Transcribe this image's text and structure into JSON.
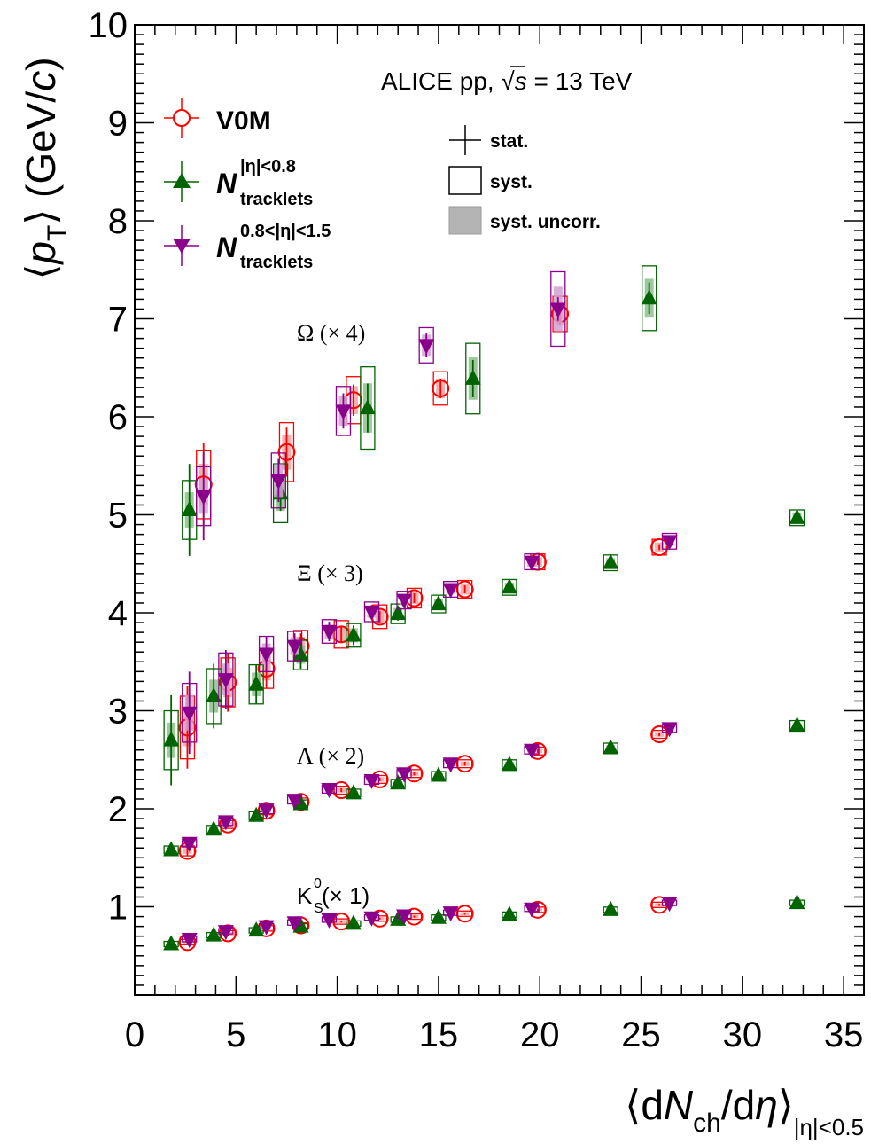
{
  "chart_data": {
    "type": "scatter",
    "title": "ALICE pp, √s = 13 TeV",
    "title_parts": {
      "pre": "ALICE pp, ",
      "sqrt": "√",
      "s": "s",
      "post": " = 13 TeV"
    },
    "xlabel": "⟨dNch/dη⟩|η|<0.5",
    "xlabel_parts": {
      "open": "⟨d",
      "N": "N",
      "ch": "ch",
      "slash": "/d",
      "eta": "η",
      "close": "⟩",
      "sub": "|η|<0.5"
    },
    "ylabel": "⟨pT⟩ (GeV/c)",
    "ylabel_parts": {
      "open": "⟨",
      "p": "p",
      "T": "T",
      "close": "⟩",
      "unit_open": " (GeV/",
      "c": "c",
      "unit_close": ")"
    },
    "xlim": [
      0,
      36
    ],
    "ylim": [
      0.1,
      10
    ],
    "xticks": [
      0,
      5,
      10,
      15,
      20,
      25,
      30,
      35
    ],
    "xtick_labels": [
      "0",
      "5",
      "10",
      "15",
      "20",
      "25",
      "30",
      "35"
    ],
    "yticks": [
      1,
      2,
      3,
      4,
      5,
      6,
      7,
      8,
      9,
      10
    ],
    "ytick_labels": [
      "1",
      "2",
      "3",
      "4",
      "5",
      "6",
      "7",
      "8",
      "9",
      "10"
    ],
    "grid": false,
    "legend_position": "top-left",
    "legend": [
      {
        "series": "V0M",
        "label": "V0M",
        "marker": "open-circle",
        "color": "#ff0000"
      },
      {
        "series": "Ntracklets_eta08",
        "label_main": "N",
        "sup": "|η|<0.8",
        "sub": "tracklets",
        "marker": "triangle-up",
        "color": "#006400"
      },
      {
        "series": "Ntracklets_eta0815",
        "label_main": "N",
        "sup": "0.8<|η|<1.5",
        "sub": "tracklets",
        "marker": "triangle-down",
        "color": "#8b008b"
      }
    ],
    "uncertainty_legend": [
      {
        "label": "stat.",
        "style": "cross"
      },
      {
        "label": "syst.",
        "style": "open-box"
      },
      {
        "label": "syst. uncorr.",
        "style": "filled-box"
      }
    ],
    "annotations": [
      {
        "text": "Ω (× 4)",
        "x": 3.8,
        "y": 7.2
      },
      {
        "text": "Ξ (× 3)",
        "x": 3.8,
        "y": 4.7
      },
      {
        "text": "Λ (× 2)",
        "x": 3.8,
        "y": 2.7
      },
      {
        "label": "K",
        "sup": "0",
        "sub": "S",
        "suffix": " (× 1)",
        "x": 3.8,
        "y": 1.2
      }
    ],
    "series": [
      {
        "name": "V0M",
        "color": "#ff0000",
        "marker": "open-circle",
        "groups": {
          "Omega": [
            {
              "x": 3.4,
              "y": 5.31,
              "stat": 0.42,
              "syst": 0.35
            },
            {
              "x": 7.5,
              "y": 5.64,
              "stat": 0.25,
              "syst": 0.3
            },
            {
              "x": 10.8,
              "y": 6.17,
              "stat": 0.16,
              "syst": 0.24
            },
            {
              "x": 15.1,
              "y": 6.29,
              "stat": 0.1,
              "syst": 0.17
            },
            {
              "x": 21.0,
              "y": 7.05,
              "stat": 0.12,
              "syst": 0.18
            }
          ],
          "Xi": [
            {
              "x": 2.6,
              "y": 2.83,
              "stat": 0.42,
              "syst": 0.32
            },
            {
              "x": 4.6,
              "y": 3.29,
              "stat": 0.3,
              "syst": 0.25
            },
            {
              "x": 6.5,
              "y": 3.43,
              "stat": 0.2,
              "syst": 0.2
            },
            {
              "x": 8.2,
              "y": 3.66,
              "stat": 0.13,
              "syst": 0.16
            },
            {
              "x": 10.2,
              "y": 3.78,
              "stat": 0.08,
              "syst": 0.14
            },
            {
              "x": 12.1,
              "y": 3.96,
              "stat": 0.06,
              "syst": 0.12
            },
            {
              "x": 13.8,
              "y": 4.15,
              "stat": 0.05,
              "syst": 0.1
            },
            {
              "x": 16.3,
              "y": 4.24,
              "stat": 0.04,
              "syst": 0.09
            },
            {
              "x": 19.9,
              "y": 4.52,
              "stat": 0.03,
              "syst": 0.08
            },
            {
              "x": 25.9,
              "y": 4.67,
              "stat": 0.03,
              "syst": 0.08
            }
          ],
          "Lambda": [
            {
              "x": 2.6,
              "y": 1.57,
              "stat": 0.05,
              "syst": 0.05
            },
            {
              "x": 4.6,
              "y": 1.84,
              "stat": 0.03,
              "syst": 0.04
            },
            {
              "x": 6.5,
              "y": 1.98,
              "stat": 0.02,
              "syst": 0.04
            },
            {
              "x": 8.2,
              "y": 2.07,
              "stat": 0.02,
              "syst": 0.04
            },
            {
              "x": 10.2,
              "y": 2.19,
              "stat": 0.02,
              "syst": 0.04
            },
            {
              "x": 12.1,
              "y": 2.3,
              "stat": 0.02,
              "syst": 0.04
            },
            {
              "x": 13.8,
              "y": 2.36,
              "stat": 0.02,
              "syst": 0.04
            },
            {
              "x": 16.3,
              "y": 2.46,
              "stat": 0.02,
              "syst": 0.04
            },
            {
              "x": 19.9,
              "y": 2.59,
              "stat": 0.02,
              "syst": 0.04
            },
            {
              "x": 25.9,
              "y": 2.76,
              "stat": 0.02,
              "syst": 0.04
            }
          ],
          "K0S": [
            {
              "x": 2.6,
              "y": 0.64,
              "stat": 0.01,
              "syst": 0.02
            },
            {
              "x": 4.6,
              "y": 0.73,
              "stat": 0.01,
              "syst": 0.02
            },
            {
              "x": 6.5,
              "y": 0.78,
              "stat": 0.01,
              "syst": 0.02
            },
            {
              "x": 8.2,
              "y": 0.81,
              "stat": 0.01,
              "syst": 0.02
            },
            {
              "x": 10.2,
              "y": 0.85,
              "stat": 0.01,
              "syst": 0.02
            },
            {
              "x": 12.1,
              "y": 0.88,
              "stat": 0.01,
              "syst": 0.02
            },
            {
              "x": 13.8,
              "y": 0.9,
              "stat": 0.01,
              "syst": 0.02
            },
            {
              "x": 16.3,
              "y": 0.93,
              "stat": 0.01,
              "syst": 0.02
            },
            {
              "x": 19.9,
              "y": 0.97,
              "stat": 0.01,
              "syst": 0.02
            },
            {
              "x": 25.9,
              "y": 1.02,
              "stat": 0.01,
              "syst": 0.02
            }
          ]
        }
      },
      {
        "name": "Ntracklets_eta08",
        "color": "#006400",
        "marker": "triangle-up",
        "groups": {
          "Omega": [
            {
              "x": 2.7,
              "y": 5.05,
              "stat": 0.47,
              "syst": 0.3
            },
            {
              "x": 7.2,
              "y": 5.22,
              "stat": 0.18,
              "syst": 0.3
            },
            {
              "x": 11.5,
              "y": 6.09,
              "stat": 0.25,
              "syst": 0.42
            },
            {
              "x": 16.7,
              "y": 6.39,
              "stat": 0.19,
              "syst": 0.36
            },
            {
              "x": 25.4,
              "y": 7.21,
              "stat": 0.16,
              "syst": 0.33
            }
          ],
          "Xi": [
            {
              "x": 1.8,
              "y": 2.7,
              "stat": 0.46,
              "syst": 0.3
            },
            {
              "x": 3.9,
              "y": 3.15,
              "stat": 0.33,
              "syst": 0.28
            },
            {
              "x": 6.0,
              "y": 3.27,
              "stat": 0.2,
              "syst": 0.2
            },
            {
              "x": 8.2,
              "y": 3.57,
              "stat": 0.14,
              "syst": 0.15
            },
            {
              "x": 10.8,
              "y": 3.77,
              "stat": 0.1,
              "syst": 0.12
            },
            {
              "x": 13.0,
              "y": 3.99,
              "stat": 0.07,
              "syst": 0.1
            },
            {
              "x": 15.0,
              "y": 4.09,
              "stat": 0.06,
              "syst": 0.09
            },
            {
              "x": 18.5,
              "y": 4.26,
              "stat": 0.05,
              "syst": 0.08
            },
            {
              "x": 23.5,
              "y": 4.51,
              "stat": 0.04,
              "syst": 0.08
            },
            {
              "x": 32.7,
              "y": 4.97,
              "stat": 0.04,
              "syst": 0.08
            }
          ],
          "Lambda": [
            {
              "x": 1.8,
              "y": 1.58,
              "stat": 0.03,
              "syst": 0.04
            },
            {
              "x": 3.9,
              "y": 1.79,
              "stat": 0.02,
              "syst": 0.04
            },
            {
              "x": 6.0,
              "y": 1.93,
              "stat": 0.02,
              "syst": 0.04
            },
            {
              "x": 8.2,
              "y": 2.05,
              "stat": 0.02,
              "syst": 0.04
            },
            {
              "x": 10.8,
              "y": 2.16,
              "stat": 0.02,
              "syst": 0.04
            },
            {
              "x": 13.0,
              "y": 2.26,
              "stat": 0.02,
              "syst": 0.04
            },
            {
              "x": 15.0,
              "y": 2.34,
              "stat": 0.02,
              "syst": 0.04
            },
            {
              "x": 18.5,
              "y": 2.45,
              "stat": 0.02,
              "syst": 0.05
            },
            {
              "x": 23.5,
              "y": 2.62,
              "stat": 0.02,
              "syst": 0.05
            },
            {
              "x": 32.7,
              "y": 2.85,
              "stat": 0.02,
              "syst": 0.05
            }
          ],
          "K0S": [
            {
              "x": 1.8,
              "y": 0.62,
              "stat": 0.01,
              "syst": 0.02
            },
            {
              "x": 3.9,
              "y": 0.71,
              "stat": 0.01,
              "syst": 0.02
            },
            {
              "x": 6.0,
              "y": 0.76,
              "stat": 0.01,
              "syst": 0.02
            },
            {
              "x": 8.2,
              "y": 0.8,
              "stat": 0.01,
              "syst": 0.02
            },
            {
              "x": 10.8,
              "y": 0.83,
              "stat": 0.01,
              "syst": 0.02
            },
            {
              "x": 13.0,
              "y": 0.87,
              "stat": 0.01,
              "syst": 0.02
            },
            {
              "x": 15.0,
              "y": 0.89,
              "stat": 0.01,
              "syst": 0.02
            },
            {
              "x": 18.5,
              "y": 0.92,
              "stat": 0.01,
              "syst": 0.02
            },
            {
              "x": 23.5,
              "y": 0.97,
              "stat": 0.01,
              "syst": 0.02
            },
            {
              "x": 32.7,
              "y": 1.04,
              "stat": 0.01,
              "syst": 0.02
            }
          ]
        }
      },
      {
        "name": "Ntracklets_eta0815",
        "color": "#8b008b",
        "marker": "triangle-down",
        "groups": {
          "Omega": [
            {
              "x": 3.4,
              "y": 5.19,
              "stat": 0.45,
              "syst": 0.3
            },
            {
              "x": 7.1,
              "y": 5.35,
              "stat": 0.22,
              "syst": 0.28
            },
            {
              "x": 10.3,
              "y": 6.06,
              "stat": 0.18,
              "syst": 0.25
            },
            {
              "x": 14.4,
              "y": 6.73,
              "stat": 0.12,
              "syst": 0.18
            },
            {
              "x": 20.9,
              "y": 7.1,
              "stat": 0.12,
              "syst": 0.38
            }
          ],
          "Xi": [
            {
              "x": 2.7,
              "y": 2.98,
              "stat": 0.42,
              "syst": 0.3
            },
            {
              "x": 4.5,
              "y": 3.32,
              "stat": 0.3,
              "syst": 0.27
            },
            {
              "x": 6.5,
              "y": 3.58,
              "stat": 0.18,
              "syst": 0.18
            },
            {
              "x": 7.9,
              "y": 3.66,
              "stat": 0.13,
              "syst": 0.15
            },
            {
              "x": 9.6,
              "y": 3.81,
              "stat": 0.1,
              "syst": 0.12
            },
            {
              "x": 11.7,
              "y": 4.01,
              "stat": 0.07,
              "syst": 0.1
            },
            {
              "x": 13.3,
              "y": 4.13,
              "stat": 0.05,
              "syst": 0.09
            },
            {
              "x": 15.6,
              "y": 4.24,
              "stat": 0.04,
              "syst": 0.08
            },
            {
              "x": 19.6,
              "y": 4.52,
              "stat": 0.04,
              "syst": 0.08
            },
            {
              "x": 26.4,
              "y": 4.73,
              "stat": 0.03,
              "syst": 0.08
            }
          ],
          "Lambda": [
            {
              "x": 2.7,
              "y": 1.65,
              "stat": 0.03,
              "syst": 0.04
            },
            {
              "x": 4.5,
              "y": 1.87,
              "stat": 0.02,
              "syst": 0.04
            },
            {
              "x": 6.5,
              "y": 1.99,
              "stat": 0.02,
              "syst": 0.04
            },
            {
              "x": 7.9,
              "y": 2.09,
              "stat": 0.02,
              "syst": 0.04
            },
            {
              "x": 9.6,
              "y": 2.2,
              "stat": 0.02,
              "syst": 0.04
            },
            {
              "x": 11.7,
              "y": 2.29,
              "stat": 0.02,
              "syst": 0.04
            },
            {
              "x": 13.3,
              "y": 2.36,
              "stat": 0.02,
              "syst": 0.04
            },
            {
              "x": 15.6,
              "y": 2.46,
              "stat": 0.02,
              "syst": 0.04
            },
            {
              "x": 19.6,
              "y": 2.6,
              "stat": 0.02,
              "syst": 0.04
            },
            {
              "x": 26.4,
              "y": 2.82,
              "stat": 0.02,
              "syst": 0.04
            }
          ],
          "K0S": [
            {
              "x": 2.7,
              "y": 0.67,
              "stat": 0.01,
              "syst": 0.02
            },
            {
              "x": 4.5,
              "y": 0.75,
              "stat": 0.01,
              "syst": 0.02
            },
            {
              "x": 6.5,
              "y": 0.8,
              "stat": 0.01,
              "syst": 0.02
            },
            {
              "x": 7.9,
              "y": 0.84,
              "stat": 0.01,
              "syst": 0.02
            },
            {
              "x": 9.6,
              "y": 0.87,
              "stat": 0.01,
              "syst": 0.02
            },
            {
              "x": 11.7,
              "y": 0.89,
              "stat": 0.01,
              "syst": 0.02
            },
            {
              "x": 13.3,
              "y": 0.91,
              "stat": 0.01,
              "syst": 0.02
            },
            {
              "x": 15.6,
              "y": 0.94,
              "stat": 0.01,
              "syst": 0.02
            },
            {
              "x": 19.6,
              "y": 0.98,
              "stat": 0.01,
              "syst": 0.02
            },
            {
              "x": 26.4,
              "y": 1.04,
              "stat": 0.01,
              "syst": 0.02
            }
          ]
        }
      }
    ]
  }
}
